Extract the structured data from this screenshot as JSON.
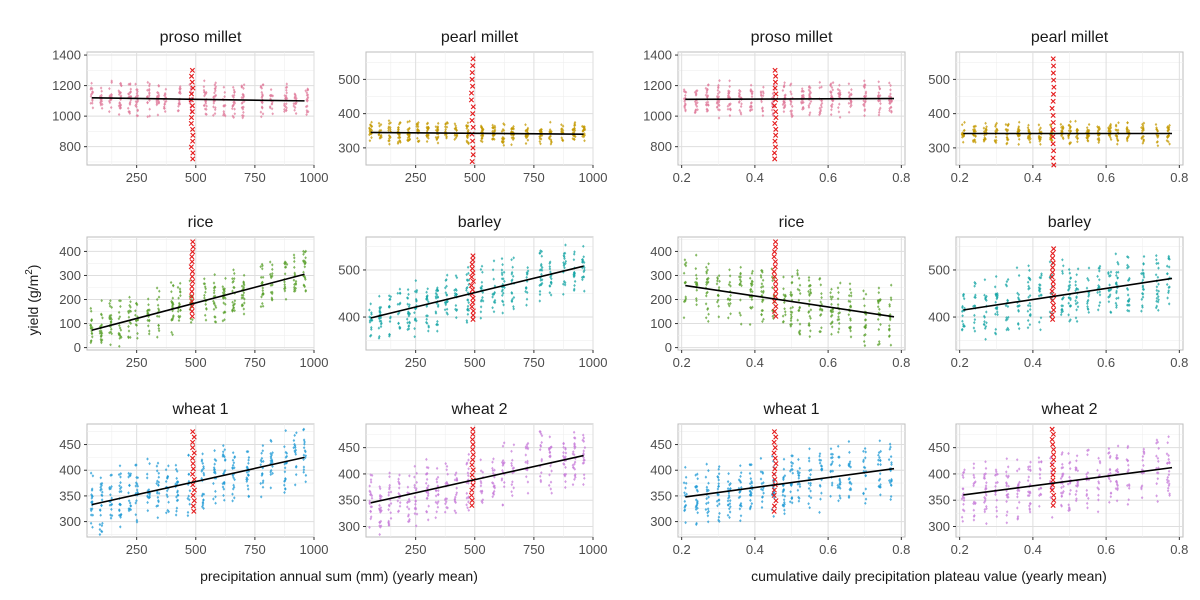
{
  "left_xlabel": "precipitation annual sum (mm) (yearly mean)",
  "right_xlabel": "cumulative daily precipitation plateau value (yearly mean)",
  "ylabel_main": "yield (g/m",
  "ylabel_sup": "2",
  "ylabel_end": ")",
  "chart_data": [
    {
      "type": "scatter",
      "title": "proso millet",
      "color": "#e07c9c",
      "xlim": [
        40,
        1000
      ],
      "ylim": [
        680,
        1420
      ],
      "xticks": [
        250,
        500,
        750,
        1000
      ],
      "yticks": [
        800,
        1000,
        1200,
        1400
      ],
      "x_centers": [
        60,
        100,
        140,
        180,
        220,
        250,
        300,
        340,
        370,
        430,
        480,
        540,
        580,
        620,
        660,
        700,
        780,
        820,
        880,
        920,
        970
      ],
      "spread": [
        1000,
        1250
      ],
      "fit": [
        [
          60,
          1120
        ],
        [
          960,
          1100
        ]
      ],
      "highlight_x": 485,
      "highlight_y": [
        720,
        1300
      ]
    },
    {
      "type": "scatter",
      "title": "pearl millet",
      "color": "#c49a00",
      "xlim": [
        40,
        1000
      ],
      "ylim": [
        250,
        580
      ],
      "xticks": [
        250,
        500,
        750,
        1000
      ],
      "yticks": [
        300,
        400,
        500
      ],
      "x_centers": [
        60,
        100,
        140,
        180,
        220,
        260,
        300,
        340,
        380,
        420,
        470,
        530,
        580,
        620,
        660,
        720,
        780,
        820,
        870,
        920,
        960
      ],
      "spread": [
        310,
        380
      ],
      "fit": [
        [
          60,
          345
        ],
        [
          960,
          340
        ]
      ],
      "highlight_x": 490,
      "highlight_y": [
        260,
        560
      ]
    },
    {
      "type": "scatter",
      "title": "proso millet",
      "color": "#e07c9c",
      "xlim": [
        0.19,
        0.81
      ],
      "ylim": [
        680,
        1420
      ],
      "xticks": [
        0.2,
        0.4,
        0.6,
        0.8
      ],
      "yticks": [
        800,
        1000,
        1200,
        1400
      ],
      "x_centers": [
        0.21,
        0.24,
        0.27,
        0.3,
        0.33,
        0.36,
        0.39,
        0.42,
        0.45,
        0.48,
        0.5,
        0.53,
        0.55,
        0.58,
        0.61,
        0.63,
        0.66,
        0.7,
        0.74,
        0.77
      ],
      "spread": [
        1000,
        1250
      ],
      "fit": [
        [
          0.21,
          1110
        ],
        [
          0.78,
          1115
        ]
      ],
      "highlight_x": 0.455,
      "highlight_y": [
        720,
        1300
      ]
    },
    {
      "type": "scatter",
      "title": "pearl millet",
      "color": "#c49a00",
      "xlim": [
        0.19,
        0.81
      ],
      "ylim": [
        250,
        580
      ],
      "xticks": [
        0.2,
        0.4,
        0.6,
        0.8
      ],
      "yticks": [
        300,
        400,
        500
      ],
      "x_centers": [
        0.21,
        0.24,
        0.27,
        0.3,
        0.33,
        0.36,
        0.39,
        0.42,
        0.45,
        0.48,
        0.5,
        0.52,
        0.55,
        0.58,
        0.61,
        0.63,
        0.66,
        0.7,
        0.74,
        0.77
      ],
      "spread": [
        310,
        380
      ],
      "fit": [
        [
          0.21,
          342
        ],
        [
          0.78,
          342
        ]
      ],
      "highlight_x": 0.455,
      "highlight_y": [
        250,
        560
      ]
    },
    {
      "type": "scatter",
      "title": "rice",
      "color": "#5aa02c",
      "xlim": [
        40,
        1000
      ],
      "ylim": [
        -10,
        460
      ],
      "xticks": [
        250,
        500,
        750,
        1000
      ],
      "yticks": [
        0,
        100,
        200,
        300,
        400
      ],
      "x_centers": [
        60,
        100,
        140,
        180,
        220,
        250,
        300,
        340,
        400,
        430,
        480,
        540,
        580,
        620,
        660,
        700,
        780,
        820,
        880,
        920,
        960
      ],
      "spread": [
        40,
        280
      ],
      "fit": [
        [
          60,
          72
        ],
        [
          960,
          305
        ]
      ],
      "highlight_x": 485,
      "highlight_y": [
        130,
        440
      ]
    },
    {
      "type": "scatter",
      "title": "barley",
      "color": "#17a5a5",
      "xlim": [
        40,
        1000
      ],
      "ylim": [
        330,
        570
      ],
      "xticks": [
        250,
        500,
        750,
        1000
      ],
      "yticks": [
        400,
        500
      ],
      "x_centers": [
        60,
        100,
        140,
        180,
        220,
        250,
        300,
        340,
        380,
        420,
        470,
        530,
        580,
        620,
        660,
        720,
        780,
        820,
        880,
        920,
        960
      ],
      "spread": [
        360,
        490
      ],
      "fit": [
        [
          60,
          398
        ],
        [
          960,
          508
        ]
      ],
      "highlight_x": 490,
      "highlight_y": [
        395,
        530
      ]
    },
    {
      "type": "scatter",
      "title": "rice",
      "color": "#5aa02c",
      "xlim": [
        0.19,
        0.81
      ],
      "ylim": [
        -10,
        460
      ],
      "xticks": [
        0.2,
        0.4,
        0.6,
        0.8
      ],
      "yticks": [
        0,
        100,
        200,
        300,
        400
      ],
      "x_centers": [
        0.21,
        0.24,
        0.27,
        0.3,
        0.33,
        0.36,
        0.39,
        0.42,
        0.45,
        0.48,
        0.5,
        0.52,
        0.55,
        0.58,
        0.61,
        0.63,
        0.66,
        0.7,
        0.74,
        0.77
      ],
      "spread": [
        40,
        330
      ],
      "fit": [
        [
          0.21,
          258
        ],
        [
          0.78,
          128
        ]
      ],
      "highlight_x": 0.455,
      "highlight_y": [
        130,
        440
      ]
    },
    {
      "type": "scatter",
      "title": "barley",
      "color": "#17a5a5",
      "xlim": [
        0.19,
        0.81
      ],
      "ylim": [
        330,
        570
      ],
      "xticks": [
        0.2,
        0.4,
        0.6,
        0.8
      ],
      "yticks": [
        400,
        500
      ],
      "x_centers": [
        0.21,
        0.24,
        0.27,
        0.3,
        0.33,
        0.36,
        0.39,
        0.42,
        0.45,
        0.48,
        0.5,
        0.52,
        0.55,
        0.58,
        0.61,
        0.63,
        0.66,
        0.7,
        0.74,
        0.77
      ],
      "spread": [
        370,
        520
      ],
      "fit": [
        [
          0.21,
          415
        ],
        [
          0.78,
          482
        ]
      ],
      "highlight_x": 0.455,
      "highlight_y": [
        395,
        545
      ]
    },
    {
      "type": "scatter",
      "title": "wheat 1",
      "color": "#1e9ad6",
      "xlim": [
        40,
        1000
      ],
      "ylim": [
        270,
        490
      ],
      "xticks": [
        250,
        500,
        750,
        1000
      ],
      "yticks": [
        300,
        350,
        400,
        450
      ],
      "x_centers": [
        60,
        100,
        140,
        180,
        220,
        250,
        300,
        340,
        380,
        420,
        470,
        530,
        580,
        620,
        660,
        720,
        780,
        820,
        880,
        920,
        960
      ],
      "spread": [
        300,
        430
      ],
      "fit": [
        [
          60,
          333
        ],
        [
          960,
          425
        ]
      ],
      "highlight_x": 490,
      "highlight_y": [
        320,
        475
      ]
    },
    {
      "type": "scatter",
      "title": "wheat 2",
      "color": "#c77cd9",
      "xlim": [
        40,
        1000
      ],
      "ylim": [
        280,
        495
      ],
      "xticks": [
        250,
        500,
        750,
        1000
      ],
      "yticks": [
        300,
        350,
        400,
        450
      ],
      "x_centers": [
        60,
        100,
        140,
        180,
        220,
        250,
        300,
        340,
        380,
        420,
        470,
        530,
        580,
        620,
        660,
        720,
        780,
        820,
        880,
        920,
        960
      ],
      "spread": [
        310,
        440
      ],
      "fit": [
        [
          60,
          345
        ],
        [
          960,
          435
        ]
      ],
      "highlight_x": 490,
      "highlight_y": [
        340,
        485
      ]
    },
    {
      "type": "scatter",
      "title": "wheat 1",
      "color": "#1e9ad6",
      "xlim": [
        0.19,
        0.81
      ],
      "ylim": [
        270,
        490
      ],
      "xticks": [
        0.2,
        0.4,
        0.6,
        0.8
      ],
      "yticks": [
        300,
        350,
        400,
        450
      ],
      "x_centers": [
        0.21,
        0.24,
        0.27,
        0.3,
        0.33,
        0.36,
        0.39,
        0.42,
        0.45,
        0.48,
        0.5,
        0.52,
        0.55,
        0.58,
        0.61,
        0.63,
        0.66,
        0.7,
        0.74,
        0.77
      ],
      "spread": [
        300,
        440
      ],
      "fit": [
        [
          0.21,
          348
        ],
        [
          0.78,
          403
        ]
      ],
      "highlight_x": 0.455,
      "highlight_y": [
        320,
        475
      ]
    },
    {
      "type": "scatter",
      "title": "wheat 2",
      "color": "#c77cd9",
      "xlim": [
        0.19,
        0.81
      ],
      "ylim": [
        280,
        495
      ],
      "xticks": [
        0.2,
        0.4,
        0.6,
        0.8
      ],
      "yticks": [
        300,
        350,
        400,
        450
      ],
      "x_centers": [
        0.21,
        0.24,
        0.27,
        0.3,
        0.33,
        0.36,
        0.39,
        0.42,
        0.45,
        0.48,
        0.5,
        0.52,
        0.55,
        0.58,
        0.61,
        0.63,
        0.66,
        0.7,
        0.74,
        0.77
      ],
      "spread": [
        310,
        445
      ],
      "fit": [
        [
          0.21,
          360
        ],
        [
          0.78,
          412
        ]
      ],
      "highlight_x": 0.455,
      "highlight_y": [
        340,
        485
      ]
    }
  ]
}
